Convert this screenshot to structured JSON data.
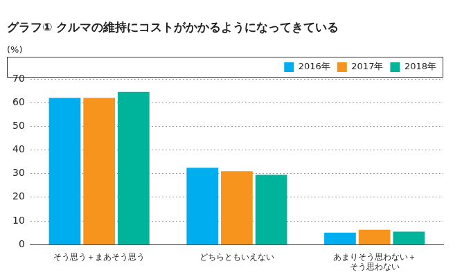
{
  "chart_data": {
    "type": "bar",
    "title": "グラフ① クルマの維持にコストがかかるようになってきている",
    "y_label": "(%)",
    "categories": [
      "そう思う＋まあそう思う",
      "どちらともいえない",
      "あまりそう思わない＋\nそう思わない"
    ],
    "series": [
      {
        "name": "2016年",
        "color": "#00aeef",
        "values": [
          62,
          32.5,
          5
        ]
      },
      {
        "name": "2017年",
        "color": "#f7941d",
        "values": [
          62,
          31,
          6.3
        ]
      },
      {
        "name": "2018年",
        "color": "#00b39b",
        "values": [
          64.5,
          29.5,
          5.5
        ]
      }
    ],
    "ylim": [
      0,
      70
    ],
    "yticks": [
      0,
      10,
      20,
      30,
      40,
      50,
      60,
      70
    ],
    "grid": true,
    "legend": "top-right"
  }
}
